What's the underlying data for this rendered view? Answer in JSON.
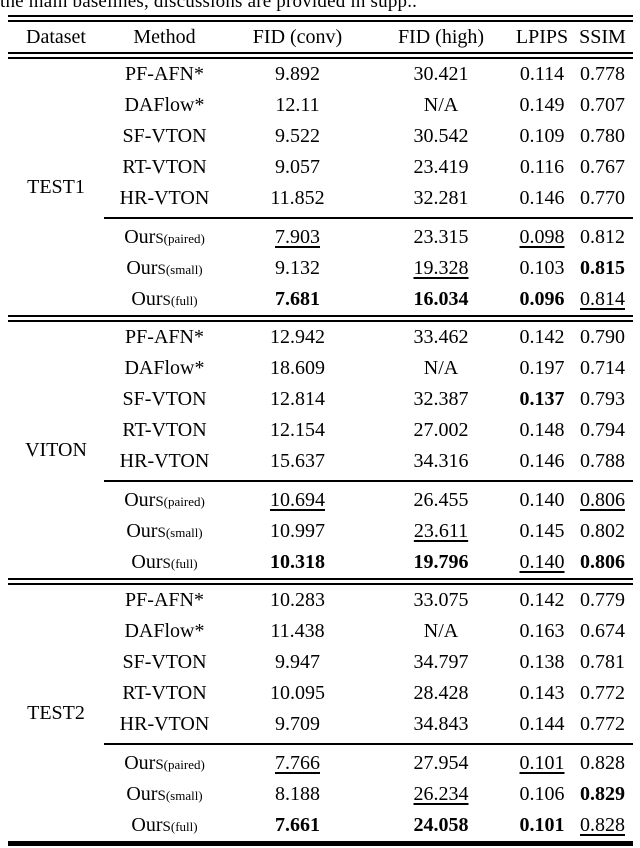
{
  "caption": "the main baselines, discussions are provided in supp..",
  "table": {
    "columns": [
      "Dataset",
      "Method",
      "FID (conv)",
      "FID (high)",
      "LPIPS",
      "SSIM"
    ],
    "ours_prefix": "Our",
    "ours_smallcap": "S",
    "blocks": [
      {
        "dataset": "TEST1",
        "baselines": [
          {
            "method": "PF-AFN*",
            "cells": [
              {
                "t": "9.892"
              },
              {
                "t": "30.421"
              },
              {
                "t": "0.114"
              },
              {
                "t": "0.778"
              }
            ]
          },
          {
            "method": "DAFlow*",
            "cells": [
              {
                "t": "12.11"
              },
              {
                "t": "N/A"
              },
              {
                "t": "0.149"
              },
              {
                "t": "0.707"
              }
            ]
          },
          {
            "method": "SF-VTON",
            "cells": [
              {
                "t": "9.522"
              },
              {
                "t": "30.542"
              },
              {
                "t": "0.109"
              },
              {
                "t": "0.780"
              }
            ]
          },
          {
            "method": "RT-VTON",
            "cells": [
              {
                "t": "9.057"
              },
              {
                "t": "23.419"
              },
              {
                "t": "0.116"
              },
              {
                "t": "0.767"
              }
            ]
          },
          {
            "method": "HR-VTON",
            "cells": [
              {
                "t": "11.852"
              },
              {
                "t": "32.281"
              },
              {
                "t": "0.146"
              },
              {
                "t": "0.770"
              }
            ]
          }
        ],
        "ours": [
          {
            "sub": "(paired)",
            "cells": [
              {
                "t": "7.903",
                "s": "u"
              },
              {
                "t": "23.315"
              },
              {
                "t": "0.098",
                "s": "u"
              },
              {
                "t": "0.812"
              }
            ]
          },
          {
            "sub": "(small)",
            "cells": [
              {
                "t": "9.132"
              },
              {
                "t": "19.328",
                "s": "u"
              },
              {
                "t": "0.103"
              },
              {
                "t": "0.815",
                "s": "b"
              }
            ]
          },
          {
            "sub": "(full)",
            "cells": [
              {
                "t": "7.681",
                "s": "b"
              },
              {
                "t": "16.034",
                "s": "b"
              },
              {
                "t": "0.096",
                "s": "b"
              },
              {
                "t": "0.814",
                "s": "u"
              }
            ]
          }
        ]
      },
      {
        "dataset": "VITON",
        "baselines": [
          {
            "method": "PF-AFN*",
            "cells": [
              {
                "t": "12.942"
              },
              {
                "t": "33.462"
              },
              {
                "t": "0.142"
              },
              {
                "t": "0.790"
              }
            ]
          },
          {
            "method": "DAFlow*",
            "cells": [
              {
                "t": "18.609"
              },
              {
                "t": "N/A"
              },
              {
                "t": "0.197"
              },
              {
                "t": "0.714"
              }
            ]
          },
          {
            "method": "SF-VTON",
            "cells": [
              {
                "t": "12.814"
              },
              {
                "t": "32.387"
              },
              {
                "t": "0.137",
                "s": "b"
              },
              {
                "t": "0.793"
              }
            ]
          },
          {
            "method": "RT-VTON",
            "cells": [
              {
                "t": "12.154"
              },
              {
                "t": "27.002"
              },
              {
                "t": "0.148"
              },
              {
                "t": "0.794"
              }
            ]
          },
          {
            "method": "HR-VTON",
            "cells": [
              {
                "t": "15.637"
              },
              {
                "t": "34.316"
              },
              {
                "t": "0.146"
              },
              {
                "t": "0.788"
              }
            ]
          }
        ],
        "ours": [
          {
            "sub": "(paired)",
            "cells": [
              {
                "t": "10.694",
                "s": "u"
              },
              {
                "t": "26.455"
              },
              {
                "t": "0.140"
              },
              {
                "t": "0.806",
                "s": "u"
              }
            ]
          },
          {
            "sub": "(small)",
            "cells": [
              {
                "t": "10.997"
              },
              {
                "t": "23.611",
                "s": "u"
              },
              {
                "t": "0.145"
              },
              {
                "t": "0.802"
              }
            ]
          },
          {
            "sub": "(full)",
            "cells": [
              {
                "t": "10.318",
                "s": "b"
              },
              {
                "t": "19.796",
                "s": "b"
              },
              {
                "t": "0.140",
                "s": "u"
              },
              {
                "t": "0.806",
                "s": "b"
              }
            ]
          }
        ]
      },
      {
        "dataset": "TEST2",
        "baselines": [
          {
            "method": "PF-AFN*",
            "cells": [
              {
                "t": "10.283"
              },
              {
                "t": "33.075"
              },
              {
                "t": "0.142"
              },
              {
                "t": "0.779"
              }
            ]
          },
          {
            "method": "DAFlow*",
            "cells": [
              {
                "t": "11.438"
              },
              {
                "t": "N/A"
              },
              {
                "t": "0.163"
              },
              {
                "t": "0.674"
              }
            ]
          },
          {
            "method": "SF-VTON",
            "cells": [
              {
                "t": "9.947"
              },
              {
                "t": "34.797"
              },
              {
                "t": "0.138"
              },
              {
                "t": "0.781"
              }
            ]
          },
          {
            "method": "RT-VTON",
            "cells": [
              {
                "t": "10.095"
              },
              {
                "t": "28.428"
              },
              {
                "t": "0.143"
              },
              {
                "t": "0.772"
              }
            ]
          },
          {
            "method": "HR-VTON",
            "cells": [
              {
                "t": "9.709"
              },
              {
                "t": "34.843"
              },
              {
                "t": "0.144"
              },
              {
                "t": "0.772"
              }
            ]
          }
        ],
        "ours": [
          {
            "sub": "(paired)",
            "cells": [
              {
                "t": "7.766",
                "s": "u"
              },
              {
                "t": "27.954"
              },
              {
                "t": "0.101",
                "s": "u"
              },
              {
                "t": "0.828"
              }
            ]
          },
          {
            "sub": "(small)",
            "cells": [
              {
                "t": "8.188"
              },
              {
                "t": "26.234",
                "s": "u"
              },
              {
                "t": "0.106"
              },
              {
                "t": "0.829",
                "s": "b"
              }
            ]
          },
          {
            "sub": "(full)",
            "cells": [
              {
                "t": "7.661",
                "s": "b"
              },
              {
                "t": "24.058",
                "s": "b"
              },
              {
                "t": "0.101",
                "s": "b"
              },
              {
                "t": "0.828",
                "s": "u"
              }
            ]
          }
        ]
      }
    ]
  }
}
